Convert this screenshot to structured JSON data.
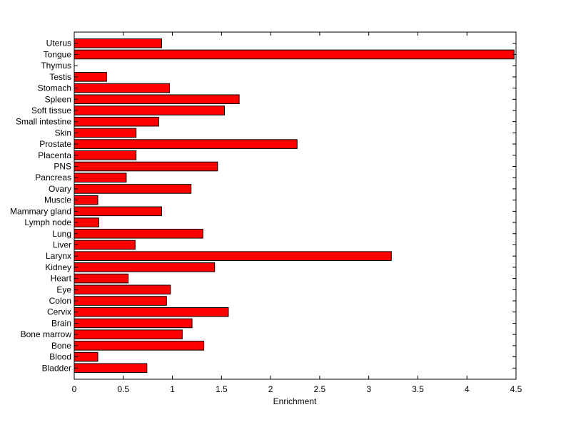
{
  "chart_data": {
    "type": "bar",
    "orientation": "horizontal",
    "title": "",
    "xlabel": "Enrichment",
    "ylabel": "",
    "xlim": [
      0,
      4.5
    ],
    "xticks": [
      0,
      0.5,
      1,
      1.5,
      2,
      2.5,
      3,
      3.5,
      4,
      4.5
    ],
    "xtick_labels": [
      "0",
      "0.5",
      "1",
      "1.5",
      "2",
      "2.5",
      "3",
      "3.5",
      "4",
      "4.5"
    ],
    "grid": false,
    "legend": "none",
    "bar_color": "#ff0000",
    "bar_edge_color": "#000000",
    "categories": [
      "Bladder",
      "Blood",
      "Bone",
      "Bone marrow",
      "Brain",
      "Cervix",
      "Colon",
      "Eye",
      "Heart",
      "Kidney",
      "Larynx",
      "Liver",
      "Lung",
      "Lymph node",
      "Mammary gland",
      "Muscle",
      "Ovary",
      "Pancreas",
      "PNS",
      "Placenta",
      "Prostate",
      "Skin",
      "Small intestine",
      "Soft tissue",
      "Spleen",
      "Stomach",
      "Testis",
      "Thymus",
      "Tongue",
      "Uterus"
    ],
    "values": [
      0.74,
      0.24,
      1.32,
      1.1,
      1.2,
      1.57,
      0.94,
      0.98,
      0.55,
      1.43,
      3.23,
      0.62,
      1.31,
      0.25,
      0.89,
      0.24,
      1.19,
      0.53,
      1.46,
      0.63,
      2.27,
      0.63,
      0.86,
      1.53,
      1.68,
      0.97,
      0.33,
      0.0,
      4.48,
      0.89
    ]
  }
}
